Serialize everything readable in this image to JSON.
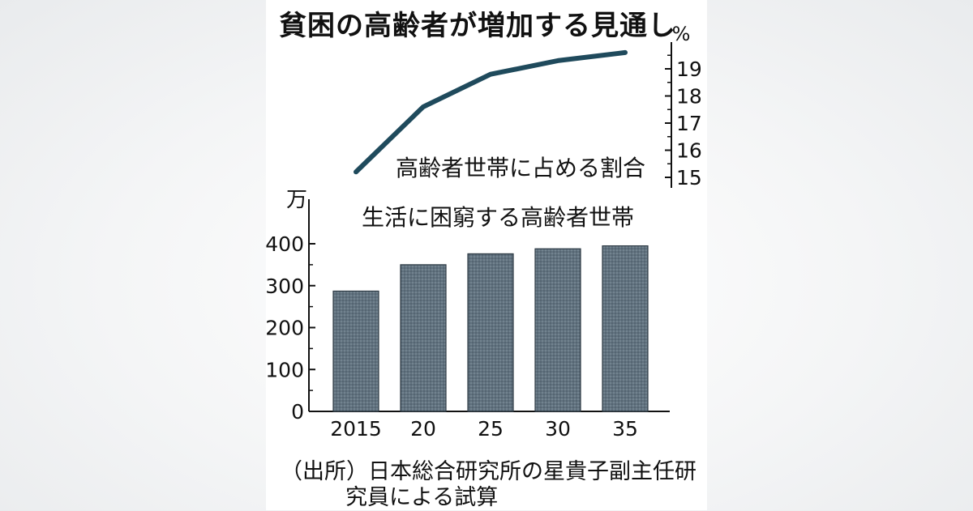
{
  "title": "貧困の高齢者が増加する見通し",
  "source_line1": "（出所）日本総合研究所の星貴子副主任研",
  "source_line2": "究員による試算",
  "chart_data": [
    {
      "type": "line",
      "label": "高齢者世帯に占める割合",
      "unit": "%",
      "x": [
        "2015",
        "20",
        "25",
        "30",
        "35"
      ],
      "values": [
        15.2,
        17.6,
        18.8,
        19.3,
        19.6
      ],
      "ylim": [
        15,
        20
      ],
      "yticks": [
        "15",
        "16",
        "17",
        "18",
        "19"
      ],
      "axis_side": "right",
      "line_color": "#1f4a5c"
    },
    {
      "type": "bar",
      "label": "生活に困窮する高齢者世帯",
      "unit": "万",
      "categories": [
        "2015",
        "20",
        "25",
        "30",
        "35"
      ],
      "values": [
        287,
        350,
        376,
        388,
        395
      ],
      "ylim": [
        0,
        450
      ],
      "yticks": [
        "0",
        "100",
        "200",
        "300",
        "400"
      ],
      "bar_color": "#5d6e7e"
    }
  ]
}
